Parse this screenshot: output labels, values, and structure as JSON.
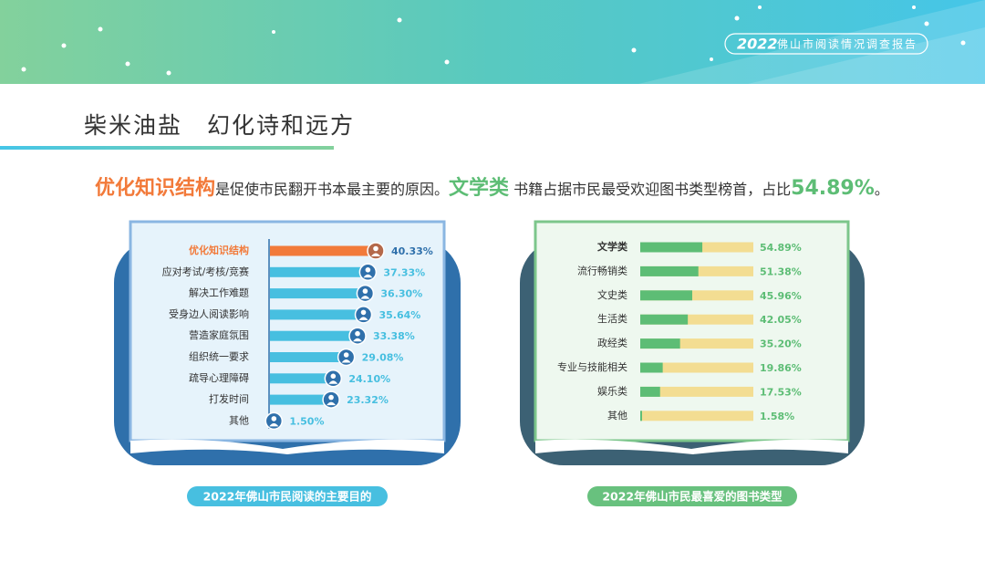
{
  "header": {
    "badge_year": "2022",
    "badge_text": "佛山市阅读情况调查报告",
    "section_title": "柴米油盐　幻化诗和远方"
  },
  "headline": [
    "优化知识结构",
    "是促使市民翻开书本最主要的原因。",
    "文学类",
    " 书籍占据市民最受欢迎图书类型榜首，占比",
    "54.89%",
    "。"
  ],
  "chart_data": [
    {
      "type": "bar",
      "orientation": "horizontal",
      "title": "2022年佛山市民阅读的主要目的",
      "categories": [
        "优化知识结构",
        "应对考试/考核/竞赛",
        "解决工作难题",
        "受身边人阅读影响",
        "营造家庭氛围",
        "组织统一要求",
        "疏导心理障碍",
        "打发时间",
        "其他"
      ],
      "values": [
        40.33,
        37.33,
        36.3,
        35.64,
        33.38,
        29.08,
        24.1,
        23.32,
        1.5
      ],
      "value_labels": [
        "40.33%",
        "37.33%",
        "36.30%",
        "35.64%",
        "33.38%",
        "29.08%",
        "24.10%",
        "23.32%",
        "1.50%"
      ],
      "color": "#47bfe0",
      "highlight": {
        "index": 0,
        "color": "#f27a3a"
      }
    },
    {
      "type": "bar",
      "orientation": "horizontal",
      "title": "2022年佛山市民最喜爱的图书类型",
      "categories": [
        "文学类",
        "流行畅销类",
        "文史类",
        "生活类",
        "政经类",
        "专业与技能相关",
        "娱乐类",
        "其他"
      ],
      "values": [
        54.89,
        51.38,
        45.96,
        42.05,
        35.2,
        19.86,
        17.53,
        1.58
      ],
      "value_labels": [
        "54.89%",
        "51.38%",
        "45.96%",
        "42.05%",
        "35.20%",
        "19.86%",
        "17.53%",
        "1.58%"
      ],
      "xlim": [
        0,
        100
      ],
      "color": "#5dbd75",
      "track_color": "#f3dd92"
    }
  ]
}
